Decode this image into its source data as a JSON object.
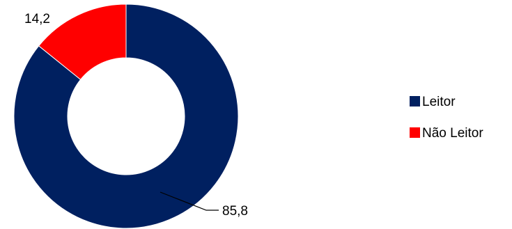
{
  "chart_data": {
    "type": "pie",
    "variant": "donut",
    "categories": [
      "Leitor",
      "Não Leitor"
    ],
    "values": [
      85.8,
      14.2
    ],
    "data_labels": [
      "85,8",
      "14,2"
    ],
    "colors": [
      "#002060",
      "#FF0000"
    ],
    "legend": {
      "position": "right",
      "items": [
        {
          "label": "Leitor",
          "color": "#002060"
        },
        {
          "label": "Não Leitor",
          "color": "#FF0000"
        }
      ]
    }
  }
}
